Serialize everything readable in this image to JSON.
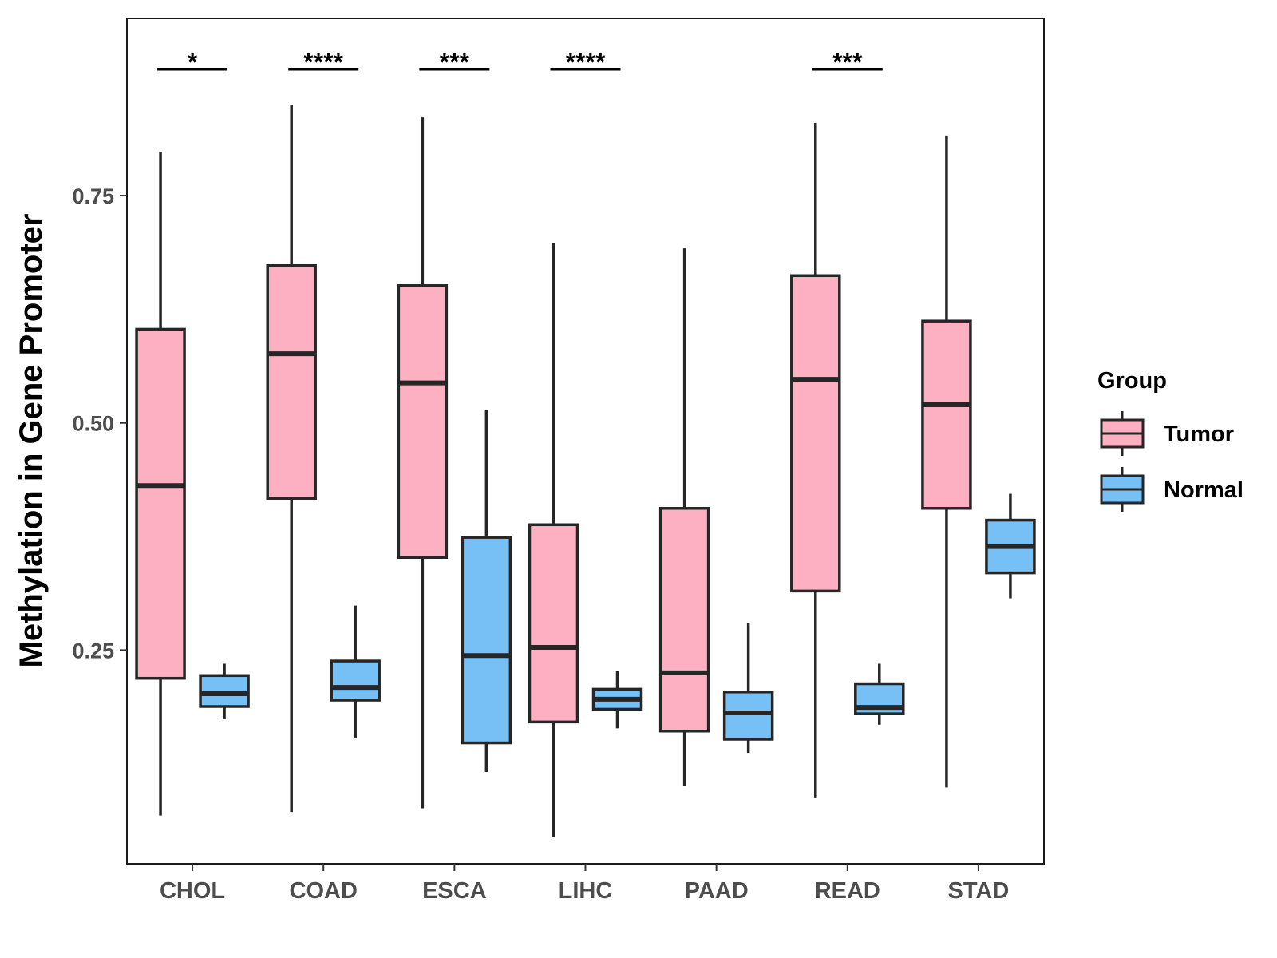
{
  "chart_data": {
    "type": "boxplot",
    "title": "",
    "xlabel": "",
    "ylabel": "Methylation in Gene Promoter",
    "ylim": [
      0.015,
      0.945
    ],
    "yticks": [
      0.25,
      0.5,
      0.75
    ],
    "ytick_labels": [
      "0.25",
      "0.50",
      "0.75"
    ],
    "categories": [
      "CHOL",
      "COAD",
      "ESCA",
      "LIHC",
      "PAAD",
      "READ",
      "STAD"
    ],
    "legend": {
      "title": "Group",
      "position": "right",
      "entries": [
        "Tumor",
        "Normal"
      ]
    },
    "colors": {
      "Tumor": "#fcb0c2",
      "Normal": "#76c0f6",
      "outline": "#262626"
    },
    "series": [
      {
        "name": "Tumor",
        "boxes": [
          {
            "category": "CHOL",
            "whisker_low": 0.068,
            "q1": 0.219,
            "median": 0.431,
            "q3": 0.603,
            "whisker_high": 0.798
          },
          {
            "category": "COAD",
            "whisker_low": 0.072,
            "q1": 0.417,
            "median": 0.576,
            "q3": 0.673,
            "whisker_high": 0.85
          },
          {
            "category": "ESCA",
            "whisker_low": 0.076,
            "q1": 0.352,
            "median": 0.544,
            "q3": 0.651,
            "whisker_high": 0.836
          },
          {
            "category": "LIHC",
            "whisker_low": 0.044,
            "q1": 0.171,
            "median": 0.253,
            "q3": 0.388,
            "whisker_high": 0.698
          },
          {
            "category": "PAAD",
            "whisker_low": 0.101,
            "q1": 0.161,
            "median": 0.225,
            "q3": 0.406,
            "whisker_high": 0.692
          },
          {
            "category": "READ",
            "whisker_low": 0.088,
            "q1": 0.315,
            "median": 0.548,
            "q3": 0.662,
            "whisker_high": 0.83
          },
          {
            "category": "STAD",
            "whisker_low": 0.099,
            "q1": 0.406,
            "median": 0.52,
            "q3": 0.612,
            "whisker_high": 0.816
          }
        ]
      },
      {
        "name": "Normal",
        "boxes": [
          {
            "category": "CHOL",
            "whisker_low": 0.174,
            "q1": 0.188,
            "median": 0.202,
            "q3": 0.222,
            "whisker_high": 0.235
          },
          {
            "category": "COAD",
            "whisker_low": 0.153,
            "q1": 0.195,
            "median": 0.209,
            "q3": 0.238,
            "whisker_high": 0.299
          },
          {
            "category": "ESCA",
            "whisker_low": 0.116,
            "q1": 0.148,
            "median": 0.244,
            "q3": 0.374,
            "whisker_high": 0.514
          },
          {
            "category": "LIHC",
            "whisker_low": 0.164,
            "q1": 0.185,
            "median": 0.196,
            "q3": 0.207,
            "whisker_high": 0.227
          },
          {
            "category": "PAAD",
            "whisker_low": 0.137,
            "q1": 0.152,
            "median": 0.181,
            "q3": 0.204,
            "whisker_high": 0.28
          },
          {
            "category": "READ",
            "whisker_low": 0.168,
            "q1": 0.18,
            "median": 0.187,
            "q3": 0.213,
            "whisker_high": 0.235
          },
          {
            "category": "STAD",
            "whisker_low": 0.307,
            "q1": 0.335,
            "median": 0.364,
            "q3": 0.393,
            "whisker_high": 0.422
          }
        ]
      }
    ],
    "significance": [
      {
        "category": "CHOL",
        "label": "*",
        "y": 0.889
      },
      {
        "category": "COAD",
        "label": "****",
        "y": 0.889
      },
      {
        "category": "ESCA",
        "label": "***",
        "y": 0.889
      },
      {
        "category": "LIHC",
        "label": "****",
        "y": 0.889
      },
      {
        "category": "READ",
        "label": "***",
        "y": 0.889
      }
    ]
  }
}
